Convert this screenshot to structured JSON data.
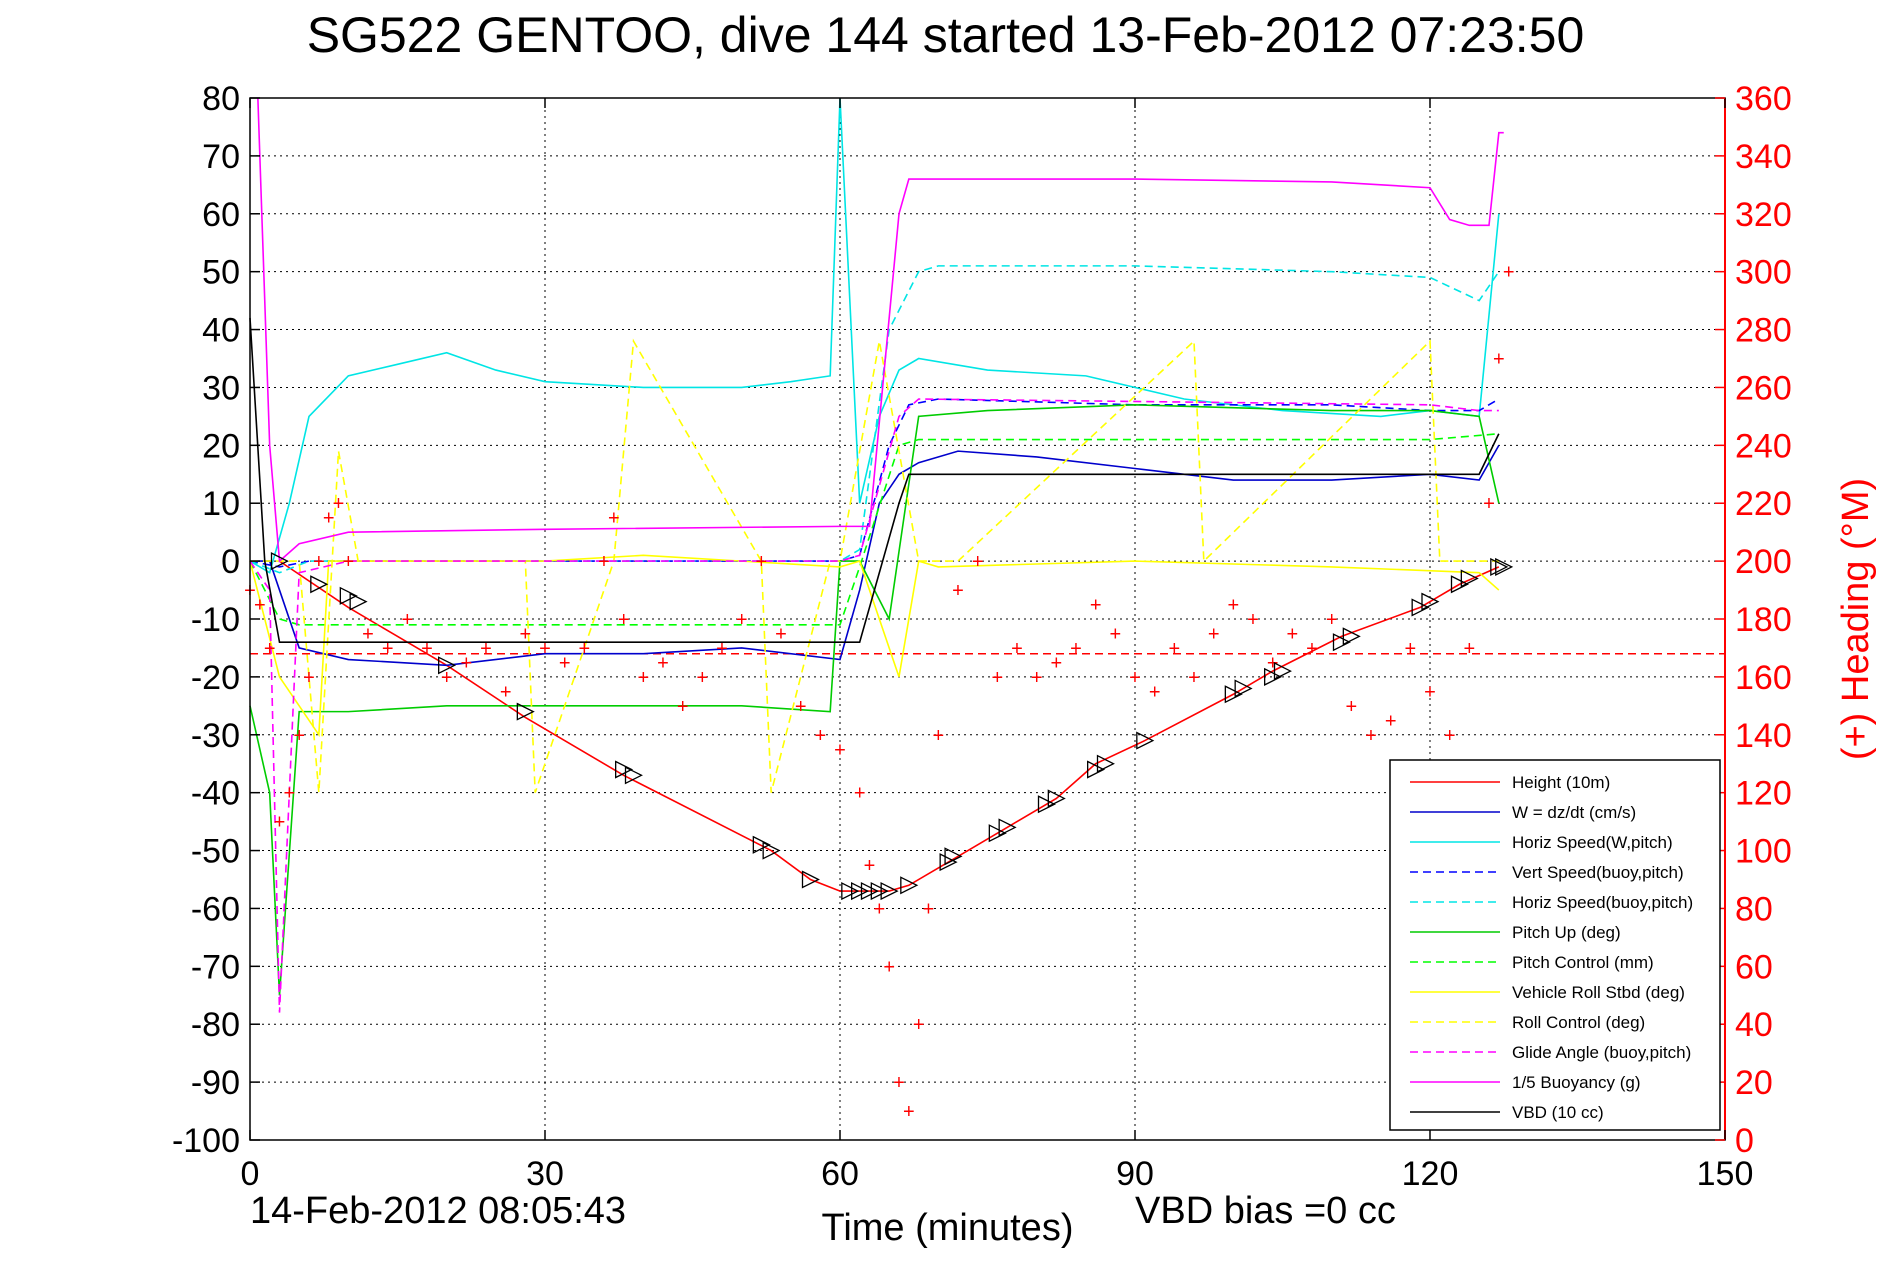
{
  "figure": {
    "title": "SG522 GENTOO, dive 144 started 13-Feb-2012 07:23:50",
    "date_stamp": "14-Feb-2012 08:05:43",
    "vbd_bias": "VBD bias =0 cc"
  },
  "chart_data": {
    "type": "line",
    "title": "SG522 GENTOO, dive 144 started 13-Feb-2012 07:23:50",
    "xlabel": "Time (minutes)",
    "ylabel": "",
    "ylabel_right": "(+) Heading (°M)",
    "xlim": [
      0,
      150
    ],
    "ylim": [
      -100,
      80
    ],
    "ylim_right": [
      0,
      360
    ],
    "x_ticks": [
      0,
      30,
      60,
      90,
      120,
      150
    ],
    "y_ticks": [
      80,
      70,
      60,
      50,
      40,
      30,
      20,
      10,
      0,
      -10,
      -20,
      -30,
      -40,
      -50,
      -60,
      -70,
      -80,
      -90,
      -100
    ],
    "y_ticks_right": [
      360,
      340,
      320,
      300,
      280,
      260,
      240,
      220,
      200,
      180,
      160,
      140,
      120,
      100,
      80,
      60,
      40,
      20,
      0
    ],
    "grid": true,
    "legend_position": "bottom-right",
    "colors": {
      "red": "#ff0000",
      "blue": "#0000cc",
      "cyan": "#00e5e5",
      "green": "#00cc00",
      "yellow": "#ffff00",
      "magenta": "#ff00ff",
      "black": "#000000"
    },
    "series": [
      {
        "name": "Height (10m)",
        "color": "#ff0000",
        "style": "solid",
        "x": [
          3,
          10,
          20,
          28,
          38,
          53,
          57,
          60,
          62,
          65,
          67,
          71,
          77,
          82,
          86,
          91,
          100,
          104,
          111,
          119,
          123,
          127
        ],
        "y": [
          0,
          -8,
          -18,
          -27,
          -37,
          -50,
          -55,
          -57,
          -57,
          -57,
          -56,
          -52,
          -46,
          -41,
          -35,
          -31,
          -23,
          -19,
          -13,
          -8,
          -4,
          -1
        ]
      },
      {
        "name": "W = dz/dt (cm/s)",
        "color": "#0000cc",
        "style": "solid",
        "x": [
          0,
          2,
          3,
          5,
          10,
          20,
          30,
          40,
          50,
          60,
          62,
          64,
          66,
          68,
          72,
          80,
          90,
          100,
          110,
          120,
          125,
          127
        ],
        "y": [
          0,
          0,
          -5,
          -15,
          -17,
          -18,
          -16,
          -16,
          -15,
          -17,
          -5,
          10,
          15,
          17,
          19,
          18,
          16,
          14,
          14,
          15,
          14,
          20
        ]
      },
      {
        "name": "Horiz Speed(W,pitch)",
        "color": "#00e5e5",
        "style": "solid",
        "x": [
          0,
          2,
          4,
          6,
          10,
          15,
          20,
          25,
          30,
          40,
          50,
          55,
          59,
          60,
          62,
          64,
          66,
          68,
          75,
          85,
          95,
          105,
          115,
          120,
          125,
          127
        ],
        "y": [
          0,
          -2,
          10,
          25,
          32,
          34,
          36,
          33,
          31,
          30,
          30,
          31,
          32,
          80,
          10,
          25,
          33,
          35,
          33,
          32,
          28,
          26,
          25,
          26,
          25,
          60
        ]
      },
      {
        "name": "Vert Speed(buoy,pitch)",
        "color": "#0000ff",
        "style": "dashed",
        "x": [
          0,
          3,
          6,
          60,
          62,
          65,
          67,
          70,
          90,
          110,
          120,
          125,
          127
        ],
        "y": [
          0,
          -1,
          0,
          0,
          1,
          20,
          27,
          28,
          27,
          27,
          26,
          26,
          28
        ]
      },
      {
        "name": "Horiz Speed(buoy,pitch)",
        "color": "#00e5e5",
        "style": "dashed",
        "x": [
          0,
          3,
          6,
          60,
          62,
          65,
          68,
          70,
          90,
          110,
          120,
          125,
          127
        ],
        "y": [
          0,
          -2,
          0,
          0,
          2,
          40,
          50,
          51,
          51,
          50,
          49,
          45,
          50
        ]
      },
      {
        "name": "Pitch Up (deg)",
        "color": "#00cc00",
        "style": "solid",
        "x": [
          0,
          2,
          3,
          5,
          10,
          20,
          30,
          40,
          50,
          59,
          60,
          62,
          65,
          68,
          75,
          90,
          110,
          120,
          125,
          127
        ],
        "y": [
          -25,
          -40,
          -75,
          -26,
          -26,
          -25,
          -25,
          -25,
          -25,
          -26,
          0,
          0,
          -10,
          25,
          26,
          27,
          26,
          26,
          25,
          10
        ]
      },
      {
        "name": "Pitch Control (mm)",
        "color": "#00ff00",
        "style": "dashed",
        "x": [
          0,
          3,
          5,
          60,
          62,
          66,
          68,
          120,
          127
        ],
        "y": [
          0,
          -10,
          -11,
          -11,
          -1,
          20,
          21,
          21,
          22
        ]
      },
      {
        "name": "Vehicle Roll Stbd (deg)",
        "color": "#ffff00",
        "style": "solid",
        "x": [
          0,
          3,
          5,
          7,
          8,
          30,
          40,
          60,
          62,
          66,
          68,
          70,
          90,
          110,
          125,
          127
        ],
        "y": [
          0,
          -20,
          -25,
          -30,
          0,
          0,
          1,
          -1,
          0,
          -20,
          0,
          -1,
          0,
          -1,
          -2,
          -5
        ]
      },
      {
        "name": "Roll Control (deg)",
        "color": "#ffff00",
        "style": "dashed",
        "x": [
          0,
          5,
          7,
          9,
          11,
          28,
          29,
          37,
          39,
          52,
          53,
          59,
          60,
          64,
          68,
          72,
          96,
          97,
          120,
          121,
          127
        ],
        "y": [
          0,
          0,
          -40,
          19,
          0,
          0,
          -40,
          0,
          38,
          0,
          -40,
          0,
          0,
          38,
          0,
          0,
          38,
          0,
          38,
          0,
          0
        ]
      },
      {
        "name": "Glide Angle (buoy,pitch)",
        "color": "#ff00ff",
        "style": "dashed",
        "x": [
          0,
          2,
          3,
          5,
          10,
          60,
          62,
          66,
          68,
          120,
          125,
          127
        ],
        "y": [
          0,
          -5,
          -78,
          -2,
          0,
          0,
          1,
          25,
          28,
          27,
          26,
          26
        ]
      },
      {
        "name": "1/5 Buoyancy (g)",
        "color": "#ff00ff",
        "style": "solid",
        "x": [
          0.8,
          2,
          3,
          5,
          10,
          30,
          60,
          62,
          63,
          66,
          67,
          90,
          110,
          120,
          122,
          124,
          126,
          127,
          127.5
        ],
        "y": [
          80,
          20,
          0,
          3,
          5,
          5.5,
          6,
          6,
          6,
          60,
          66,
          66,
          65.5,
          64.5,
          59,
          58,
          58,
          74,
          74
        ]
      },
      {
        "name": "VBD (10 cc)",
        "color": "#000000",
        "style": "solid",
        "x": [
          0,
          1.5,
          3,
          30,
          60,
          62,
          66,
          67,
          110,
          120,
          125,
          127
        ],
        "y": [
          42,
          0,
          -14,
          -14,
          -14,
          -14,
          10,
          15,
          15,
          15,
          15,
          22
        ]
      }
    ],
    "heading_series": {
      "name": "(+) Heading",
      "color": "#ff0000",
      "marker": "+",
      "axis": "right",
      "x": [
        0,
        1,
        2,
        3,
        4,
        5,
        6,
        7,
        8,
        9,
        10,
        12,
        14,
        16,
        18,
        20,
        22,
        24,
        26,
        28,
        30,
        32,
        34,
        36,
        37,
        38,
        40,
        42,
        44,
        46,
        48,
        50,
        52,
        54,
        56,
        58,
        60,
        62,
        63,
        64,
        65,
        66,
        67,
        68,
        69,
        70,
        72,
        74,
        76,
        78,
        80,
        82,
        84,
        86,
        88,
        90,
        92,
        94,
        96,
        98,
        100,
        102,
        104,
        106,
        108,
        110,
        112,
        114,
        116,
        118,
        120,
        122,
        124,
        126,
        127,
        128
      ],
      "y": [
        190,
        185,
        170,
        110,
        120,
        140,
        160,
        200,
        215,
        220,
        200,
        175,
        170,
        180,
        170,
        160,
        165,
        170,
        155,
        175,
        170,
        165,
        170,
        200,
        215,
        180,
        160,
        165,
        150,
        160,
        170,
        180,
        200,
        175,
        150,
        140,
        135,
        120,
        95,
        80,
        60,
        20,
        10,
        40,
        80,
        140,
        190,
        200,
        160,
        170,
        160,
        165,
        170,
        185,
        175,
        160,
        155,
        170,
        160,
        175,
        185,
        180,
        165,
        175,
        170,
        180,
        150,
        140,
        145,
        170,
        155,
        140,
        170,
        220,
        270,
        300
      ]
    },
    "heading_reference": {
      "color": "#ff0000",
      "style": "dashed",
      "value": 168
    },
    "turn_markers": {
      "color": "#000000",
      "x": [
        3,
        7,
        10,
        11,
        20,
        28,
        38,
        39,
        52,
        53,
        57,
        61,
        62,
        63,
        64,
        65,
        67,
        71,
        71.5,
        76,
        77,
        81,
        82,
        86,
        87,
        91,
        100,
        101,
        104,
        105,
        111,
        112,
        119,
        120,
        123,
        124,
        127,
        127.5
      ],
      "y": [
        0,
        -4,
        -6,
        -7,
        -18,
        -26,
        -36,
        -37,
        -49,
        -50,
        -55,
        -57,
        -57,
        -57,
        -57,
        -57,
        -56,
        -52,
        -51,
        -47,
        -46,
        -42,
        -41,
        -36,
        -35,
        -31,
        -23,
        -22,
        -20,
        -19,
        -14,
        -13,
        -8,
        -7,
        -4,
        -3,
        -1,
        -1
      ]
    }
  }
}
